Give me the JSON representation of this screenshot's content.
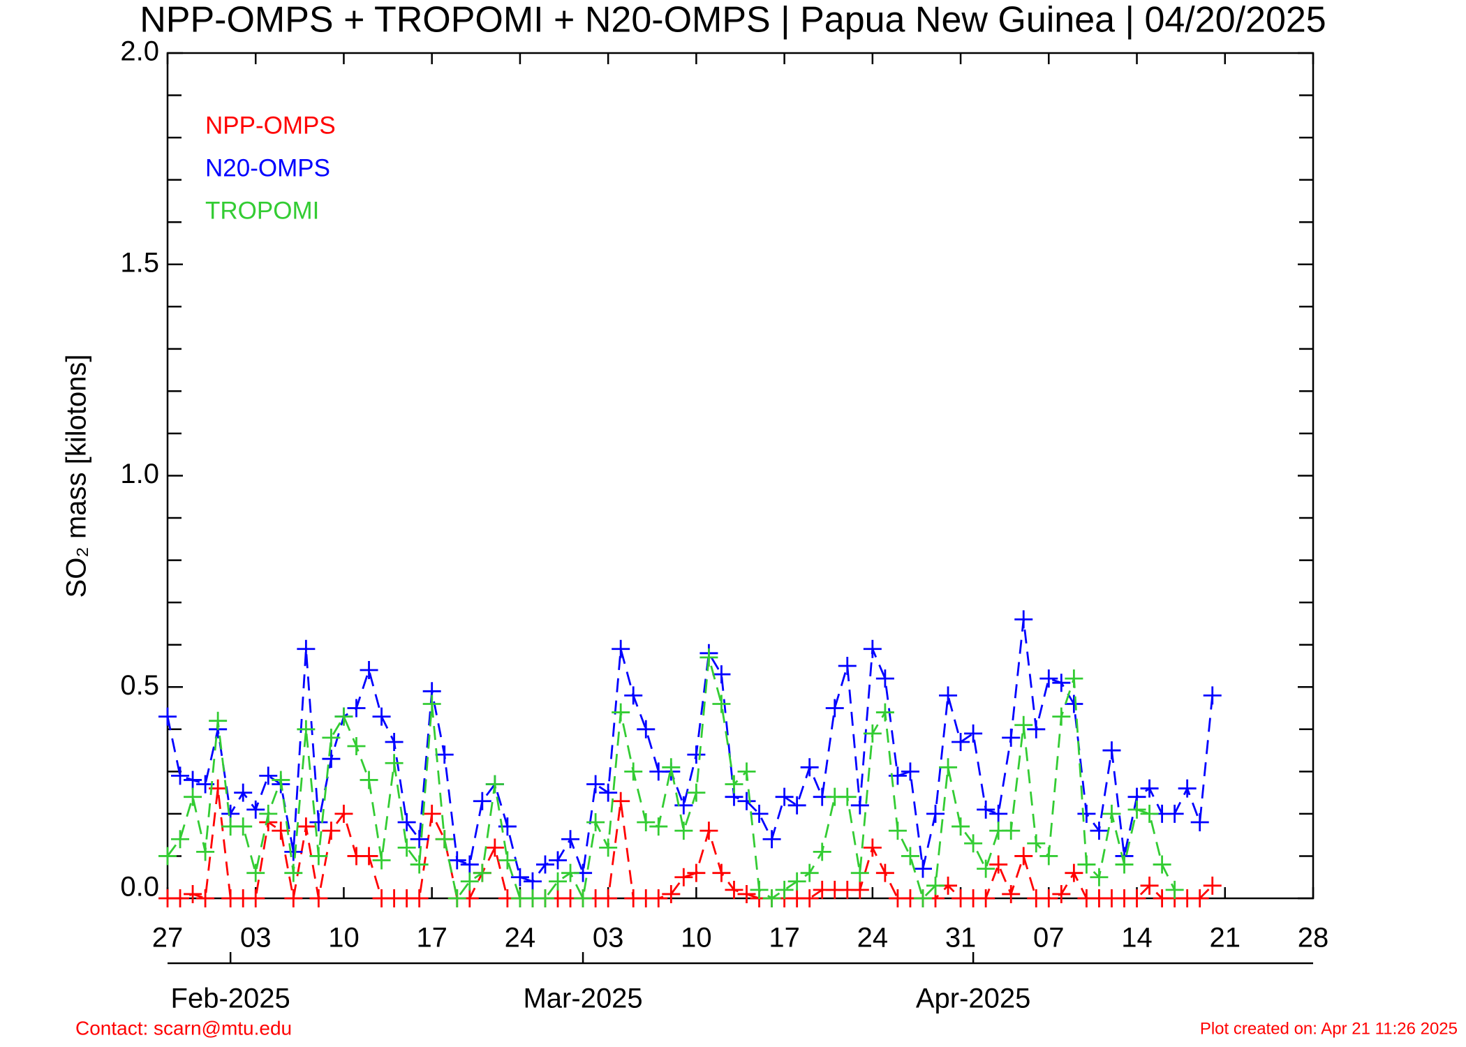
{
  "chart_data": {
    "type": "line",
    "title": "NPP-OMPS + TROPOMI + N20-OMPS | Papua New Guinea | 04/20/2025",
    "ylabel": "SO₂ mass [kilotons]",
    "contact": "Contact: scarn@mtu.edu",
    "created": "Plot created on: Apr 21 11:26 2025",
    "xlim": [
      "2025-01-27",
      "2025-04-28"
    ],
    "xticks": [
      {
        "value": "2025-01-27",
        "label": "27"
      },
      {
        "value": "2025-02-03",
        "label": "03"
      },
      {
        "value": "2025-02-10",
        "label": "10"
      },
      {
        "value": "2025-02-17",
        "label": "17"
      },
      {
        "value": "2025-02-24",
        "label": "24"
      },
      {
        "value": "2025-03-03",
        "label": "03"
      },
      {
        "value": "2025-03-10",
        "label": "10"
      },
      {
        "value": "2025-03-17",
        "label": "17"
      },
      {
        "value": "2025-03-24",
        "label": "24"
      },
      {
        "value": "2025-03-31",
        "label": "31"
      },
      {
        "value": "2025-04-07",
        "label": "07"
      },
      {
        "value": "2025-04-14",
        "label": "14"
      },
      {
        "value": "2025-04-21",
        "label": "21"
      },
      {
        "value": "2025-04-28",
        "label": "28"
      }
    ],
    "month_ticks": [
      {
        "value": "2025-02-01",
        "label": "Feb-2025"
      },
      {
        "value": "2025-03-01",
        "label": "Mar-2025"
      },
      {
        "value": "2025-04-01",
        "label": "Apr-2025"
      }
    ],
    "ylim": [
      0,
      2
    ],
    "yticks": [
      {
        "value": 0,
        "label": "0.0"
      },
      {
        "value": 0.5,
        "label": "0.5"
      },
      {
        "value": 1,
        "label": "1.0"
      },
      {
        "value": 1.5,
        "label": "1.5"
      },
      {
        "value": 2,
        "label": "2.0"
      }
    ],
    "yminorticks": [
      0.1,
      0.2,
      0.3,
      0.4,
      0.6,
      0.7,
      0.8,
      0.9,
      1.1,
      1.2,
      1.3,
      1.4,
      1.6,
      1.7,
      1.8,
      1.9
    ],
    "x": [
      "2025-01-27",
      "2025-01-28",
      "2025-01-29",
      "2025-01-30",
      "2025-01-31",
      "2025-02-01",
      "2025-02-02",
      "2025-02-03",
      "2025-02-04",
      "2025-02-05",
      "2025-02-06",
      "2025-02-07",
      "2025-02-08",
      "2025-02-09",
      "2025-02-10",
      "2025-02-11",
      "2025-02-12",
      "2025-02-13",
      "2025-02-14",
      "2025-02-15",
      "2025-02-16",
      "2025-02-17",
      "2025-02-18",
      "2025-02-19",
      "2025-02-20",
      "2025-02-21",
      "2025-02-22",
      "2025-02-23",
      "2025-02-24",
      "2025-02-25",
      "2025-02-26",
      "2025-02-27",
      "2025-02-28",
      "2025-03-01",
      "2025-03-02",
      "2025-03-03",
      "2025-03-04",
      "2025-03-05",
      "2025-03-06",
      "2025-03-07",
      "2025-03-08",
      "2025-03-09",
      "2025-03-10",
      "2025-03-11",
      "2025-03-12",
      "2025-03-13",
      "2025-03-14",
      "2025-03-15",
      "2025-03-16",
      "2025-03-17",
      "2025-03-18",
      "2025-03-19",
      "2025-03-20",
      "2025-03-21",
      "2025-03-22",
      "2025-03-23",
      "2025-03-24",
      "2025-03-25",
      "2025-03-26",
      "2025-03-27",
      "2025-03-28",
      "2025-03-29",
      "2025-03-30",
      "2025-03-31",
      "2025-04-01",
      "2025-04-02",
      "2025-04-03",
      "2025-04-04",
      "2025-04-05",
      "2025-04-06",
      "2025-04-07",
      "2025-04-08",
      "2025-04-09",
      "2025-04-10",
      "2025-04-11",
      "2025-04-12",
      "2025-04-13",
      "2025-04-14",
      "2025-04-15",
      "2025-04-16",
      "2025-04-17",
      "2025-04-18",
      "2025-04-19",
      "2025-04-20"
    ],
    "series": [
      {
        "name": "NPP-OMPS",
        "color": "#ff0000",
        "values": [
          0,
          0,
          0.01,
          0,
          0.26,
          0,
          0,
          0,
          0.18,
          0.16,
          0,
          0.17,
          0,
          0.16,
          0.2,
          0.1,
          0.1,
          0,
          0,
          0,
          0,
          0.2,
          0.14,
          0,
          0,
          0.06,
          0.12,
          0,
          0,
          0,
          0,
          0,
          0,
          0,
          0,
          0,
          0.23,
          0,
          0,
          0,
          0.01,
          0.05,
          0.06,
          0.16,
          0.06,
          0.02,
          0.01,
          0,
          0,
          0,
          0,
          0,
          0.02,
          0.02,
          0.02,
          0.02,
          0.12,
          0.06,
          0,
          0,
          0,
          0,
          0.03,
          0,
          0,
          0,
          0.08,
          0.01,
          0.1,
          0,
          0,
          0.01,
          0.06,
          0,
          0,
          0,
          0,
          0,
          0.03,
          0,
          0,
          0,
          0,
          0.03
        ]
      },
      {
        "name": "N20-OMPS",
        "color": "#0000ff",
        "values": [
          0.43,
          0.29,
          0.28,
          0.27,
          0.4,
          0.2,
          0.25,
          0.21,
          0.29,
          0.27,
          0.11,
          0.59,
          0.18,
          0.33,
          0.43,
          0.45,
          0.54,
          0.43,
          0.37,
          0.18,
          0.14,
          0.49,
          0.34,
          0.09,
          0.08,
          0.23,
          0.27,
          0.17,
          0.05,
          0.04,
          0.08,
          0.09,
          0.14,
          0.06,
          0.27,
          0.25,
          0.59,
          0.48,
          0.4,
          0.3,
          0.3,
          0.22,
          0.34,
          0.58,
          0.53,
          0.24,
          0.23,
          0.2,
          0.14,
          0.24,
          0.22,
          0.31,
          0.24,
          0.45,
          0.55,
          0.22,
          0.59,
          0.52,
          0.29,
          0.3,
          0.07,
          0.2,
          0.48,
          0.37,
          0.39,
          0.21,
          0.2,
          0.38,
          0.66,
          0.4,
          0.52,
          0.51,
          0.46,
          0.2,
          0.16,
          0.35,
          0.1,
          0.24,
          0.26,
          0.2,
          0.2,
          0.26,
          0.18,
          0.48
        ]
      },
      {
        "name": "TROPOMI",
        "color": "#33cc33",
        "values": [
          0.1,
          0.14,
          0.24,
          0.11,
          0.42,
          0.17,
          0.17,
          0.06,
          0.2,
          0.28,
          0.06,
          0.4,
          0.1,
          0.38,
          0.43,
          0.36,
          0.28,
          0.09,
          0.32,
          0.12,
          0.08,
          0.46,
          0.14,
          0,
          0.04,
          0.06,
          0.27,
          0.09,
          0,
          0,
          0,
          0.04,
          0.06,
          0,
          0.18,
          0.12,
          0.44,
          0.3,
          0.18,
          0.17,
          0.31,
          0.16,
          0.25,
          0.57,
          0.46,
          0.27,
          0.3,
          0.02,
          0,
          0.02,
          0.04,
          0.06,
          0.11,
          0.24,
          0.24,
          0.06,
          0.39,
          0.44,
          0.16,
          0.1,
          0,
          0.03,
          0.31,
          0.17,
          0.13,
          0.07,
          0.16,
          0.16,
          0.41,
          0.13,
          0.1,
          0.43,
          0.52,
          0.08,
          0.05,
          0.2,
          0.08,
          0.21,
          0.2,
          0.08,
          0.02,
          null,
          null,
          null
        ]
      }
    ]
  }
}
